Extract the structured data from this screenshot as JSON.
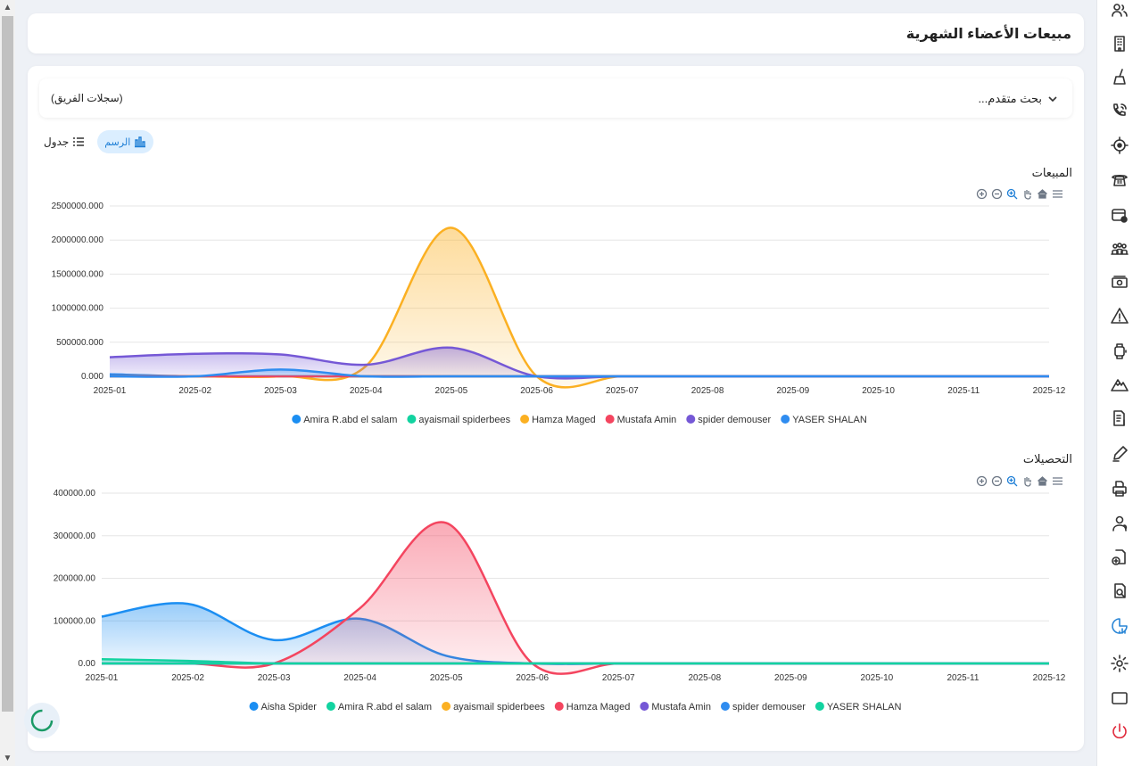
{
  "page": {
    "title": "مبيعات الأعضاء الشهرية"
  },
  "search": {
    "advanced_label": "بحث متقدم...",
    "team_records": "(سجلات الفريق)"
  },
  "view_toggle": {
    "chart_label": "الرسم",
    "table_label": "جدول"
  },
  "colors": {
    "blue": "#1b8ef2",
    "green": "#12d3a0",
    "orange": "#fbb022",
    "red": "#f4455f",
    "purple": "#7558d6",
    "blue2": "#2f8cf0"
  },
  "sidebar_icons": [
    "users-icon",
    "building-icon",
    "broom-icon",
    "phone-call-icon",
    "location-target-icon",
    "telephone-icon",
    "card-settings-icon",
    "team-icon",
    "money-icon",
    "warning-icon",
    "watch-icon",
    "mountain-icon",
    "invoice-icon",
    "pen-icon",
    "printer-icon",
    "user-support-icon",
    "document-add-icon",
    "document-search-icon",
    "chart-pie-icon",
    "gear-icon",
    "window-icon",
    "power-icon"
  ],
  "charts": [
    {
      "chart_data": {
        "type": "area",
        "title": "المبيعات",
        "categories": [
          "2025-01",
          "2025-02",
          "2025-03",
          "2025-04",
          "2025-05",
          "2025-06",
          "2025-07",
          "2025-08",
          "2025-09",
          "2025-10",
          "2025-11",
          "2025-12"
        ],
        "y_ticks": [
          "0.000",
          "500000.000",
          "1000000.000",
          "1500000.000",
          "2000000.000",
          "2500000.000"
        ],
        "ylim": [
          0,
          2500000
        ],
        "legend_position": "bottom",
        "series": [
          {
            "name": "Amira R.abd el salam",
            "color": "#1b8ef2",
            "values": [
              30000,
              0,
              0,
              0,
              0,
              0,
              0,
              0,
              0,
              0,
              0,
              0
            ]
          },
          {
            "name": "ayaismail spiderbees",
            "color": "#12d3a0",
            "values": [
              0,
              0,
              0,
              0,
              0,
              0,
              0,
              0,
              0,
              0,
              0,
              0
            ]
          },
          {
            "name": "Hamza Maged",
            "color": "#fbb022",
            "values": [
              0,
              0,
              0,
              150000,
              2180000,
              0,
              0,
              0,
              0,
              0,
              0,
              0
            ]
          },
          {
            "name": "Mustafa Amin",
            "color": "#f4455f",
            "values": [
              0,
              0,
              0,
              0,
              0,
              0,
              0,
              0,
              0,
              0,
              0,
              0
            ]
          },
          {
            "name": "spider demouser",
            "color": "#7558d6",
            "values": [
              280000,
              330000,
              320000,
              170000,
              420000,
              0,
              0,
              0,
              0,
              0,
              0,
              0
            ]
          },
          {
            "name": "YASER SHALAN",
            "color": "#2f8cf0",
            "values": [
              0,
              0,
              100000,
              0,
              0,
              0,
              0,
              0,
              0,
              0,
              0,
              0
            ]
          }
        ]
      }
    },
    {
      "chart_data": {
        "type": "area",
        "title": "التحصيلات",
        "categories": [
          "2025-01",
          "2025-02",
          "2025-03",
          "2025-04",
          "2025-05",
          "2025-06",
          "2025-07",
          "2025-08",
          "2025-09",
          "2025-10",
          "2025-11",
          "2025-12"
        ],
        "y_ticks": [
          "0.00",
          "100000.00",
          "200000.00",
          "300000.00",
          "400000.00"
        ],
        "ylim": [
          0,
          400000
        ],
        "legend_position": "bottom",
        "series": [
          {
            "name": "Aisha Spider",
            "color": "#1b8ef2",
            "values": [
              110000,
              140000,
              55000,
              105000,
              18000,
              0,
              0,
              0,
              0,
              0,
              0,
              0
            ]
          },
          {
            "name": "Amira R.abd el salam",
            "color": "#12d3a0",
            "values": [
              10000,
              6000,
              0,
              0,
              0,
              0,
              0,
              0,
              0,
              0,
              0,
              0
            ]
          },
          {
            "name": "ayaismail spiderbees",
            "color": "#fbb022",
            "values": [
              0,
              0,
              0,
              0,
              0,
              0,
              0,
              0,
              0,
              0,
              0,
              0
            ]
          },
          {
            "name": "Hamza Maged",
            "color": "#f4455f",
            "values": [
              0,
              0,
              0,
              130000,
              330000,
              0,
              0,
              0,
              0,
              0,
              0,
              0
            ]
          },
          {
            "name": "Mustafa Amin",
            "color": "#7558d6",
            "values": [
              0,
              0,
              0,
              0,
              0,
              0,
              0,
              0,
              0,
              0,
              0,
              0
            ]
          },
          {
            "name": "spider demouser",
            "color": "#2f8cf0",
            "values": [
              0,
              0,
              0,
              0,
              0,
              0,
              0,
              0,
              0,
              0,
              0,
              0
            ]
          },
          {
            "name": "YASER SHALAN",
            "color": "#12d3a0",
            "values": [
              0,
              0,
              0,
              0,
              0,
              0,
              0,
              0,
              0,
              0,
              0,
              0
            ]
          }
        ]
      }
    }
  ]
}
